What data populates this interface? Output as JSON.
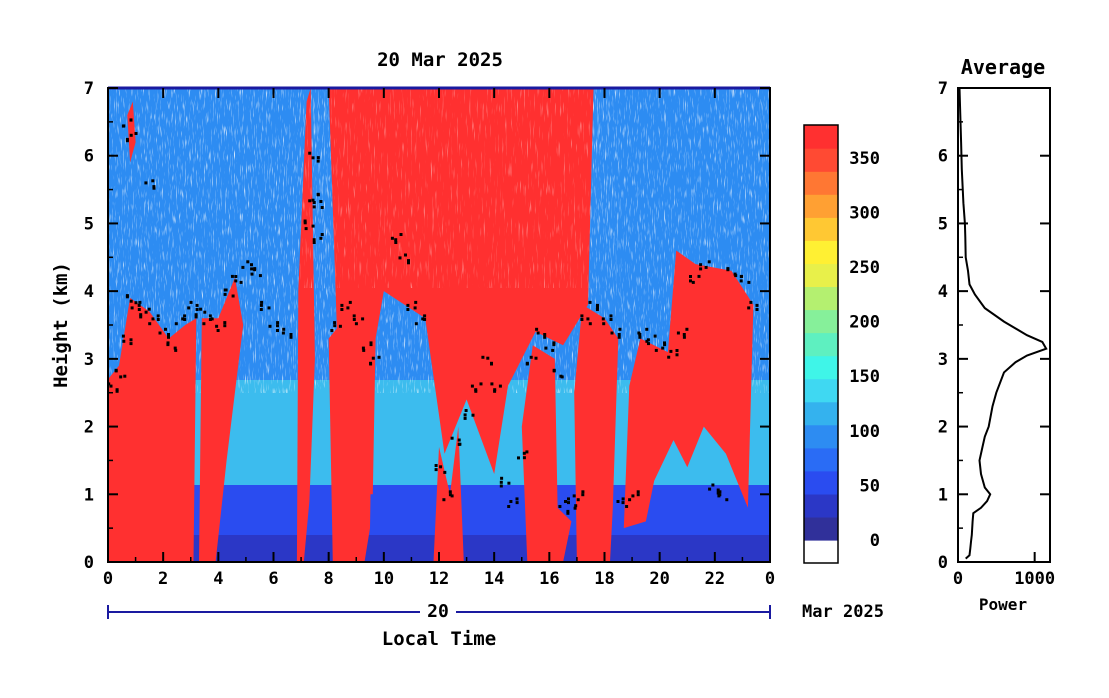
{
  "chart_data": [
    {
      "type": "heatmap",
      "title": "20 Mar 2025",
      "xlabel": "Local Time",
      "ylabel": "Height (km)",
      "xlim": [
        0,
        24
      ],
      "ylim": [
        0,
        7
      ],
      "x_ticks": [
        "0",
        "2",
        "4",
        "6",
        "8",
        "10",
        "12",
        "14",
        "16",
        "18",
        "20",
        "22",
        "0"
      ],
      "y_ticks": [
        "0",
        "1",
        "2",
        "3",
        "4",
        "5",
        "6",
        "7"
      ],
      "date_day": "20",
      "date_month": "Mar 2025",
      "colorbar": {
        "ticks": [
          "0",
          "50",
          "100",
          "150",
          "200",
          "250",
          "300",
          "350"
        ],
        "range": [
          0,
          380
        ],
        "colors": [
          "#ffffff",
          "#30309a",
          "#2b37c6",
          "#2a4cf0",
          "#2a6cf5",
          "#2d8cf2",
          "#34b2ee",
          "#3fd8f2",
          "#3ff5e8",
          "#5ef0c0",
          "#86f09a",
          "#b4f070",
          "#e8f04a",
          "#fff033",
          "#ffc833",
          "#ffa033",
          "#ff7733",
          "#ff4a33",
          "#ff3030"
        ]
      },
      "layers": [
        {
          "name": "background-blue",
          "color": "#2d8cf2",
          "from_height": 1.0,
          "to_height": 7.0
        },
        {
          "name": "boundary-layer",
          "color": "#2a4cf0",
          "from_height": 0.0,
          "to_height": 1.0
        }
      ],
      "cloud_base_points": [
        [
          0.1,
          2.6
        ],
        [
          0.4,
          2.8
        ],
        [
          0.6,
          3.3
        ],
        [
          0.8,
          3.9
        ],
        [
          1.0,
          3.8
        ],
        [
          1.3,
          3.7
        ],
        [
          1.6,
          3.6
        ],
        [
          2.0,
          3.4
        ],
        [
          2.3,
          3.2
        ],
        [
          2.6,
          3.6
        ],
        [
          3.0,
          3.8
        ],
        [
          3.3,
          3.7
        ],
        [
          3.6,
          3.6
        ],
        [
          4.0,
          3.5
        ],
        [
          4.3,
          4.0
        ],
        [
          4.6,
          4.2
        ],
        [
          5.0,
          4.4
        ],
        [
          5.3,
          4.3
        ],
        [
          5.6,
          3.8
        ],
        [
          6.0,
          3.5
        ],
        [
          6.4,
          3.4
        ],
        [
          7.2,
          5.0
        ],
        [
          7.4,
          5.4
        ],
        [
          7.6,
          4.8
        ],
        [
          8.2,
          3.5
        ],
        [
          8.6,
          3.8
        ],
        [
          9.0,
          3.6
        ],
        [
          9.3,
          3.2
        ],
        [
          9.6,
          3.0
        ],
        [
          10.4,
          4.8
        ],
        [
          10.7,
          4.5
        ],
        [
          11.0,
          3.8
        ],
        [
          11.3,
          3.6
        ],
        [
          12.0,
          1.4
        ],
        [
          12.3,
          1.0
        ],
        [
          12.6,
          1.8
        ],
        [
          13.0,
          2.2
        ],
        [
          13.3,
          2.6
        ],
        [
          13.7,
          3.0
        ],
        [
          14.0,
          2.6
        ],
        [
          14.3,
          1.2
        ],
        [
          14.6,
          0.9
        ],
        [
          15.0,
          1.6
        ],
        [
          15.3,
          3.0
        ],
        [
          15.6,
          3.4
        ],
        [
          16.0,
          3.2
        ],
        [
          16.3,
          2.8
        ],
        [
          16.5,
          0.9
        ],
        [
          16.8,
          0.8
        ],
        [
          17.0,
          1.0
        ],
        [
          17.3,
          3.6
        ],
        [
          17.6,
          3.8
        ],
        [
          18.0,
          3.6
        ],
        [
          18.4,
          3.4
        ],
        [
          18.6,
          0.9
        ],
        [
          19.0,
          1.0
        ],
        [
          19.3,
          3.4
        ],
        [
          19.6,
          3.3
        ],
        [
          20.0,
          3.2
        ],
        [
          20.4,
          3.1
        ],
        [
          20.8,
          3.4
        ],
        [
          21.2,
          4.2
        ],
        [
          21.6,
          4.4
        ],
        [
          21.9,
          1.1
        ],
        [
          22.2,
          1.0
        ],
        [
          22.6,
          4.3
        ],
        [
          23.0,
          4.2
        ],
        [
          23.3,
          3.8
        ]
      ],
      "high_cloud_top_points": [
        [
          0.6,
          6.5
        ],
        [
          0.8,
          6.3
        ],
        [
          1.5,
          5.6
        ],
        [
          7.4,
          6.0
        ],
        [
          7.6,
          5.3
        ]
      ]
    },
    {
      "type": "line",
      "title": "Average",
      "xlabel": "Power",
      "ylabel": "",
      "xlim": [
        0,
        1200
      ],
      "ylim": [
        0,
        7
      ],
      "x_ticks": [
        "0",
        "1000"
      ],
      "y_ticks": [
        "0",
        "1",
        "2",
        "3",
        "4",
        "5",
        "6",
        "7"
      ],
      "x": [
        100,
        150,
        160,
        170,
        180,
        190,
        200,
        300,
        380,
        420,
        350,
        300,
        280,
        320,
        350,
        400,
        450,
        500,
        600,
        750,
        900,
        1150,
        1100,
        900,
        600,
        350,
        220,
        150,
        130,
        100,
        95,
        90,
        70,
        50,
        40,
        30,
        20
      ],
      "y": [
        0.05,
        0.1,
        0.2,
        0.3,
        0.4,
        0.6,
        0.72,
        0.8,
        0.9,
        1.0,
        1.1,
        1.3,
        1.5,
        1.7,
        1.85,
        2.0,
        2.3,
        2.5,
        2.8,
        2.95,
        3.05,
        3.15,
        3.25,
        3.35,
        3.55,
        3.75,
        3.95,
        4.1,
        4.3,
        4.5,
        4.8,
        5.0,
        5.3,
        5.8,
        6.2,
        6.6,
        7.0
      ]
    }
  ]
}
